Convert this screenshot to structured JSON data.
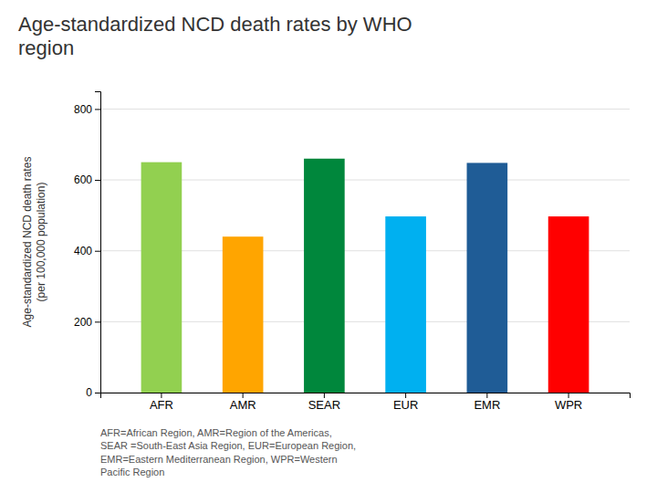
{
  "chart_data": {
    "type": "bar",
    "title": "Age-standardized NCD death rates by WHO\nregion",
    "categories": [
      "AFR",
      "AMR",
      "SEAR",
      "EUR",
      "EMR",
      "WPR"
    ],
    "values": [
      650,
      440,
      660,
      497,
      648,
      497
    ],
    "colors": [
      "#92D050",
      "#FFA500",
      "#00873C",
      "#00B0F0",
      "#1F5C96",
      "#FF0000"
    ],
    "ylabel": "Age-standardized NCD death rates\n(per 100,000 population)",
    "ylim": [
      0,
      850
    ],
    "yticks": [
      0,
      200,
      400,
      600,
      800
    ],
    "grid": true,
    "annotations": [
      "AFR=African Region, AMR=Region of the Americas,\nSEAR =South-East Asia Region, EUR=European Region,\nEMR=Eastern Mediterranean Region, WPR=Western\nPacific Region"
    ]
  }
}
